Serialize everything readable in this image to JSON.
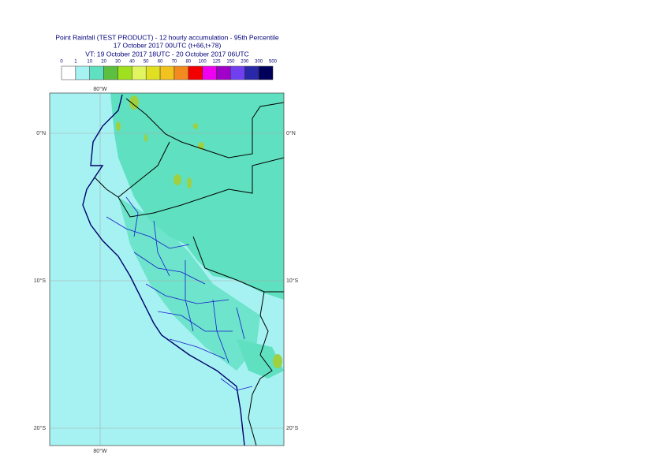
{
  "header": {
    "title": "Point Rainfall (TEST PRODUCT) - 12 hourly accumulation - 95th Percentile",
    "base": "17 October 2017 00UTC (t+66,t+78)",
    "valid": "VT: 19 October 2017 18UTC - 20 October 2017 06UTC"
  },
  "legend": {
    "labels": [
      "0",
      "1",
      "10",
      "20",
      "30",
      "40",
      "50",
      "60",
      "70",
      "80",
      "100",
      "125",
      "150",
      "200",
      "300",
      "500"
    ],
    "colors": [
      "#ffffff",
      "#a6f2f2",
      "#5fe0c0",
      "#5cbf3f",
      "#9fe01f",
      "#e0f560",
      "#e0e020",
      "#f2c21f",
      "#f28a1f",
      "#f20000",
      "#f000f0",
      "#a000c8",
      "#7040f0",
      "#2828a8",
      "#00005a"
    ]
  },
  "map": {
    "lon_labels": [
      "80°W",
      "80°W"
    ],
    "lat_labels": [
      "0°N",
      "0°N",
      "10°S",
      "10°S",
      "20°S",
      "20°S"
    ]
  }
}
